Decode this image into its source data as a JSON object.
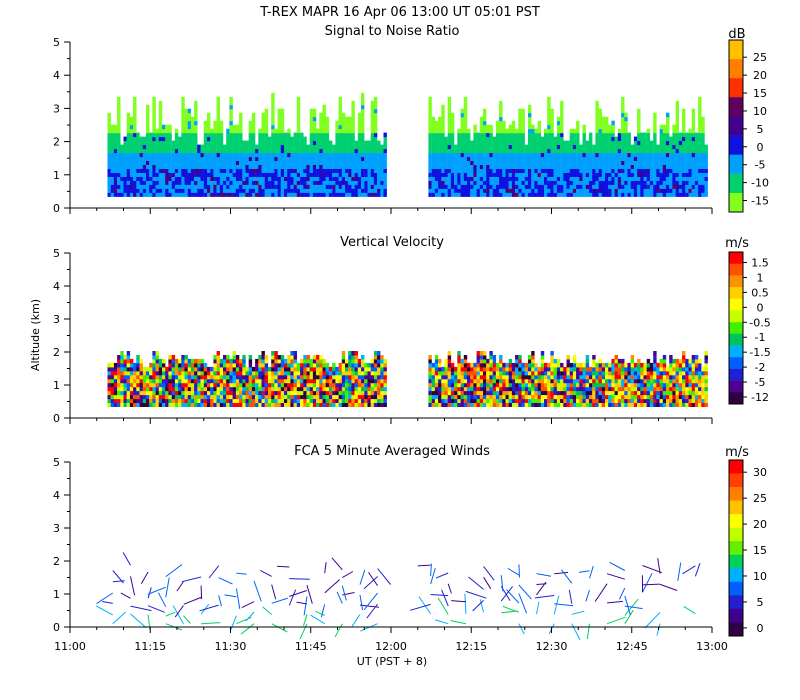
{
  "title": "T-REX  MAPR 16 Apr 06  13:00 UT  05:01  PST",
  "x_axis": {
    "label": "UT  (PST + 8)",
    "ticks": [
      "11:00",
      "11:15",
      "11:30",
      "11:45",
      "12:00",
      "12:15",
      "12:30",
      "12:45",
      "13:00"
    ],
    "range_min": [
      660,
      780
    ],
    "data_gap_min": [
      719,
      727
    ],
    "data_start_min": 667
  },
  "y_axis": {
    "label": "Altitude (km)",
    "ticks": [
      "0",
      "1",
      "2",
      "3",
      "4",
      "5"
    ],
    "range_km": [
      0,
      5
    ]
  },
  "chart_data": [
    {
      "type": "heatmap",
      "title": "Signal to Noise Ratio",
      "unit": "dB",
      "colorbar_ticks": [
        "25",
        "20",
        "15",
        "10",
        "5",
        "0",
        "-5",
        "-10",
        "-15"
      ],
      "colorbar_colors": [
        "#ffc000",
        "#ff8000",
        "#ff3000",
        "#600060",
        "#400090",
        "#1010e0",
        "#00a0ff",
        "#00d070",
        "#80ff20"
      ]
    },
    {
      "type": "heatmap",
      "title": "Vertical Velocity",
      "unit": "m/s",
      "colorbar_ticks": [
        "1.5",
        "1",
        "0.5",
        "0",
        "-0.5",
        "-1",
        "-1.5",
        "-2",
        "-5",
        "-12"
      ],
      "colorbar_colors": [
        "#ff0000",
        "#ff5000",
        "#ff9000",
        "#ffd000",
        "#ffff00",
        "#c8ff00",
        "#40f000",
        "#00c060",
        "#00b0ff",
        "#0060ff",
        "#2020d0",
        "#500090",
        "#300040"
      ]
    },
    {
      "type": "scatter",
      "title": "FCA 5 Minute Averaged Winds",
      "unit": "m/s",
      "colorbar_ticks": [
        "30",
        "25",
        "20",
        "15",
        "10",
        "5",
        "0"
      ],
      "colorbar_colors": [
        "#ff0000",
        "#ff4000",
        "#ff8000",
        "#ffc000",
        "#ffff00",
        "#c0ff00",
        "#60f000",
        "#00d060",
        "#00b0ff",
        "#0060ff",
        "#2020d0",
        "#400090",
        "#300040"
      ]
    }
  ]
}
